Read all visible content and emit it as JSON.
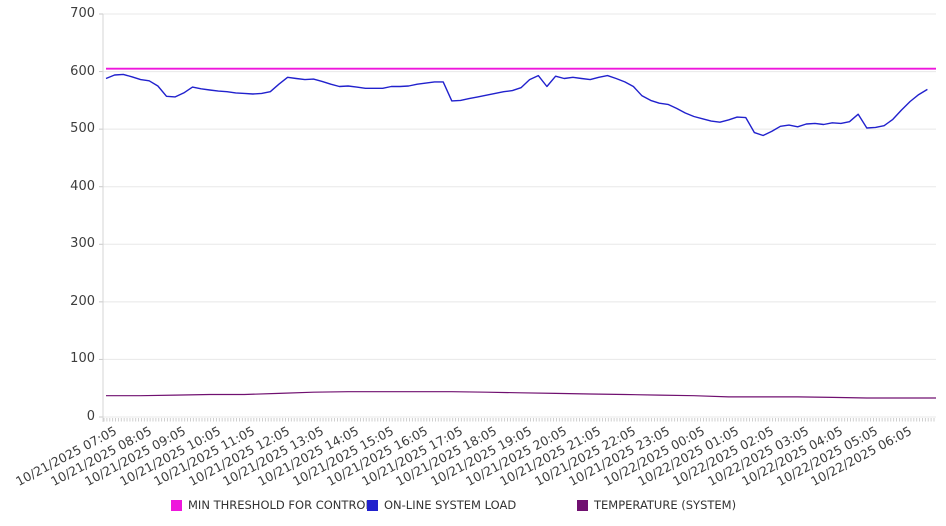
{
  "chart_data": {
    "type": "line",
    "title": "",
    "grid": "horizontal",
    "legend_position": "bottom",
    "y_axis": {
      "min": 0,
      "max": 700,
      "ticks": [
        0,
        100,
        200,
        300,
        400,
        500,
        600,
        700
      ]
    },
    "x_axis": {
      "minor_tick_minutes": 5,
      "tick_labels": [
        "10/21/2025 07:05",
        "10/21/2025 08:05",
        "10/21/2025 09:05",
        "10/21/2025 10:05",
        "10/21/2025 11:05",
        "10/21/2025 12:05",
        "10/21/2025 13:05",
        "10/21/2025 14:05",
        "10/21/2025 15:05",
        "10/21/2025 16:05",
        "10/21/2025 17:05",
        "10/21/2025 18:05",
        "10/21/2025 19:05",
        "10/21/2025 20:05",
        "10/21/2025 21:05",
        "10/21/2025 22:05",
        "10/21/2025 23:05",
        "10/22/2025 00:05",
        "10/22/2025 01:05",
        "10/22/2025 02:05",
        "10/22/2025 03:05",
        "10/22/2025 04:05",
        "10/22/2025 05:05",
        "10/22/2025 06:05"
      ]
    },
    "series": [
      {
        "name": "MIN THRESHOLD FOR CONTROL",
        "color": "#ee16dc",
        "interval_minutes": 1440,
        "values": [
          605,
          605
        ]
      },
      {
        "name": "ON-LINE SYSTEM LOAD",
        "color": "#2121cd",
        "interval_minutes": 15,
        "values": [
          588,
          594,
          595,
          591,
          586,
          584,
          575,
          557,
          556,
          563,
          573,
          570,
          568,
          566,
          565,
          563,
          562,
          561,
          562,
          565,
          578,
          590,
          588,
          586,
          587,
          583,
          578,
          574,
          575,
          573,
          571,
          571,
          571,
          574,
          574,
          575,
          578,
          580,
          582,
          582,
          549,
          550,
          553,
          556,
          559,
          562,
          565,
          567,
          572,
          586,
          593,
          574,
          592,
          588,
          590,
          588,
          586,
          590,
          593,
          588,
          582,
          574,
          558,
          550,
          545,
          543,
          536,
          528,
          522,
          518,
          514,
          512,
          516,
          521,
          520,
          494,
          489,
          496,
          505,
          507,
          504,
          509,
          510,
          508,
          511,
          510,
          513,
          526,
          502,
          503,
          506,
          517,
          533,
          548,
          560,
          569
        ]
      },
      {
        "name": "TEMPERATURE (SYSTEM)",
        "color": "#701070",
        "interval_minutes": 60,
        "values": [
          37,
          37,
          38,
          39,
          39,
          41,
          43,
          44,
          44,
          44,
          44,
          43,
          42,
          41,
          40,
          39,
          38,
          37,
          35,
          35,
          35,
          34,
          33,
          33,
          33
        ]
      }
    ]
  }
}
